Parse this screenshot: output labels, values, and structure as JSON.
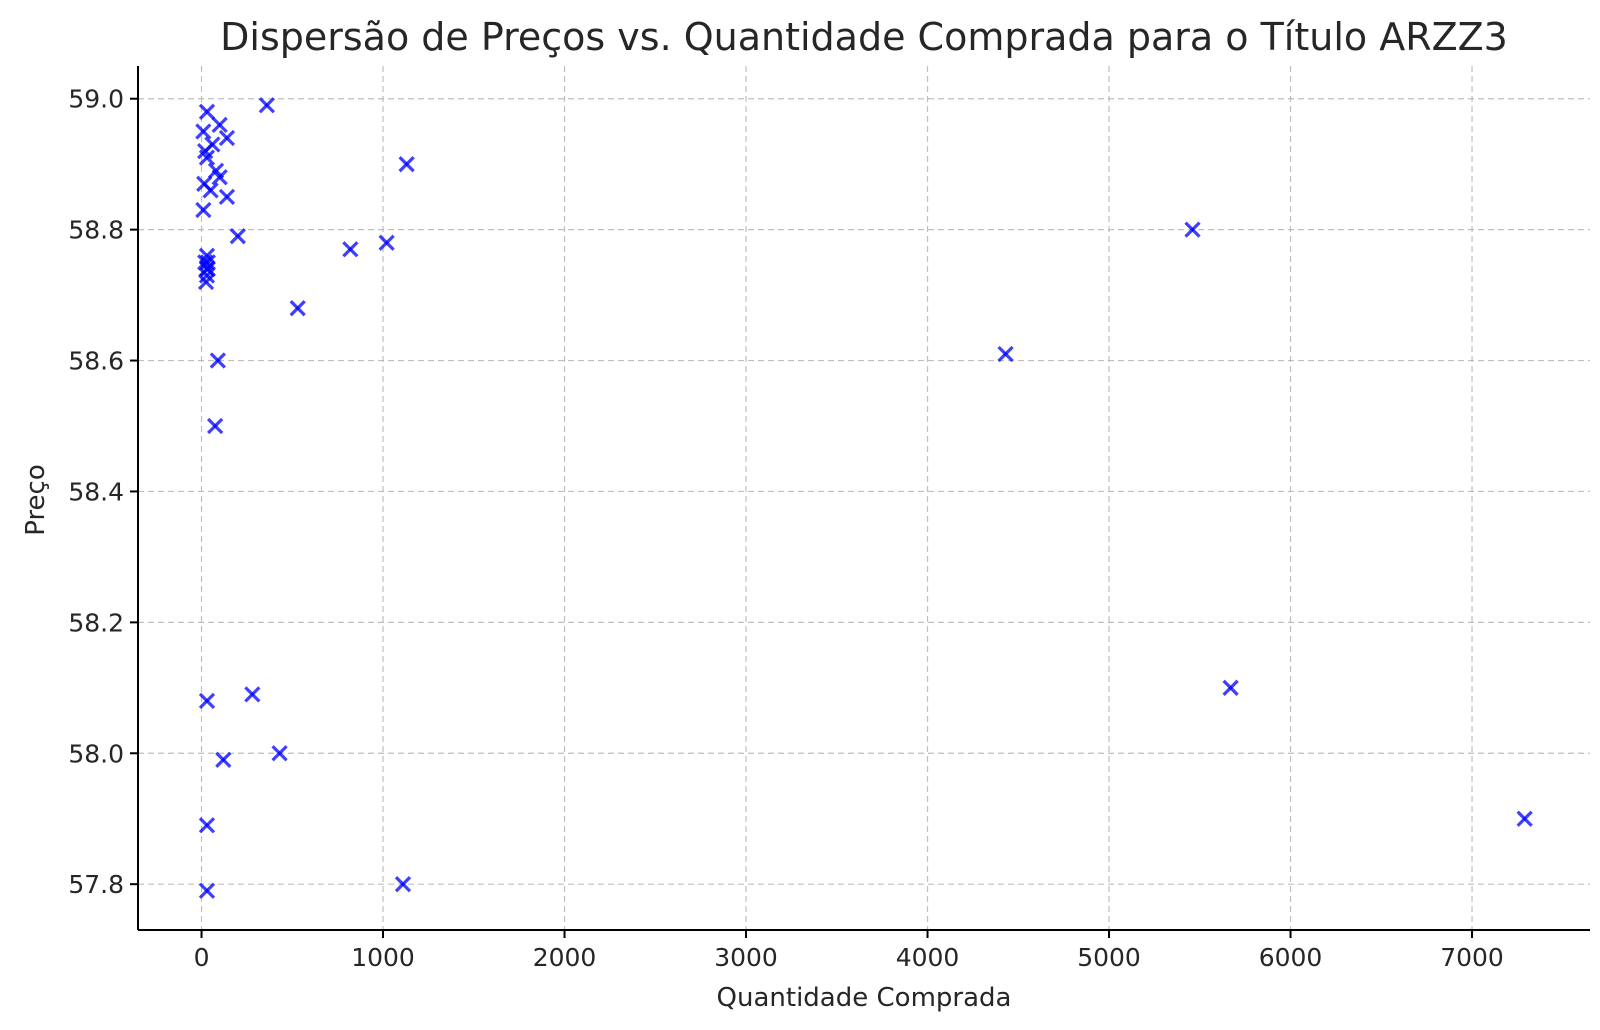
{
  "chart_data": {
    "type": "scatter",
    "title": "Dispersão de Preços vs. Quantidade Comprada para o Título ARZZ3",
    "xlabel": "Quantidade Comprada",
    "ylabel": "Preço",
    "xlim": [
      -350,
      7650
    ],
    "ylim": [
      57.73,
      59.05
    ],
    "x_ticks": [
      0,
      1000,
      2000,
      3000,
      4000,
      5000,
      6000,
      7000
    ],
    "x_tick_labels": [
      "0",
      "1000",
      "2000",
      "3000",
      "4000",
      "5000",
      "6000",
      "7000"
    ],
    "y_ticks": [
      57.8,
      58.0,
      58.2,
      58.4,
      58.6,
      58.8,
      59.0
    ],
    "y_tick_labels": [
      "57.8",
      "58.0",
      "58.2",
      "58.4",
      "58.6",
      "58.8",
      "59.0"
    ],
    "grid": true,
    "marker": "x",
    "color": "#0000ff",
    "series": [
      {
        "x": [
          30,
          360,
          10,
          100,
          140,
          60,
          20,
          30,
          1130,
          15,
          80,
          100,
          50,
          140,
          10,
          200,
          5460,
          820,
          1020,
          30,
          35,
          30,
          35,
          30,
          25,
          20,
          530,
          4430,
          90,
          75,
          5670,
          280,
          30,
          430,
          120,
          7290,
          30,
          1110,
          30
        ],
        "y": [
          58.98,
          58.99,
          58.95,
          58.96,
          58.94,
          58.93,
          58.92,
          58.91,
          58.9,
          58.87,
          58.89,
          58.88,
          58.86,
          58.85,
          58.83,
          58.79,
          58.8,
          58.77,
          58.78,
          58.76,
          58.75,
          58.74,
          58.74,
          58.73,
          58.72,
          58.75,
          58.68,
          58.61,
          58.6,
          58.5,
          58.1,
          58.09,
          58.08,
          58.0,
          57.99,
          57.9,
          57.89,
          57.8,
          57.79
        ]
      }
    ]
  }
}
